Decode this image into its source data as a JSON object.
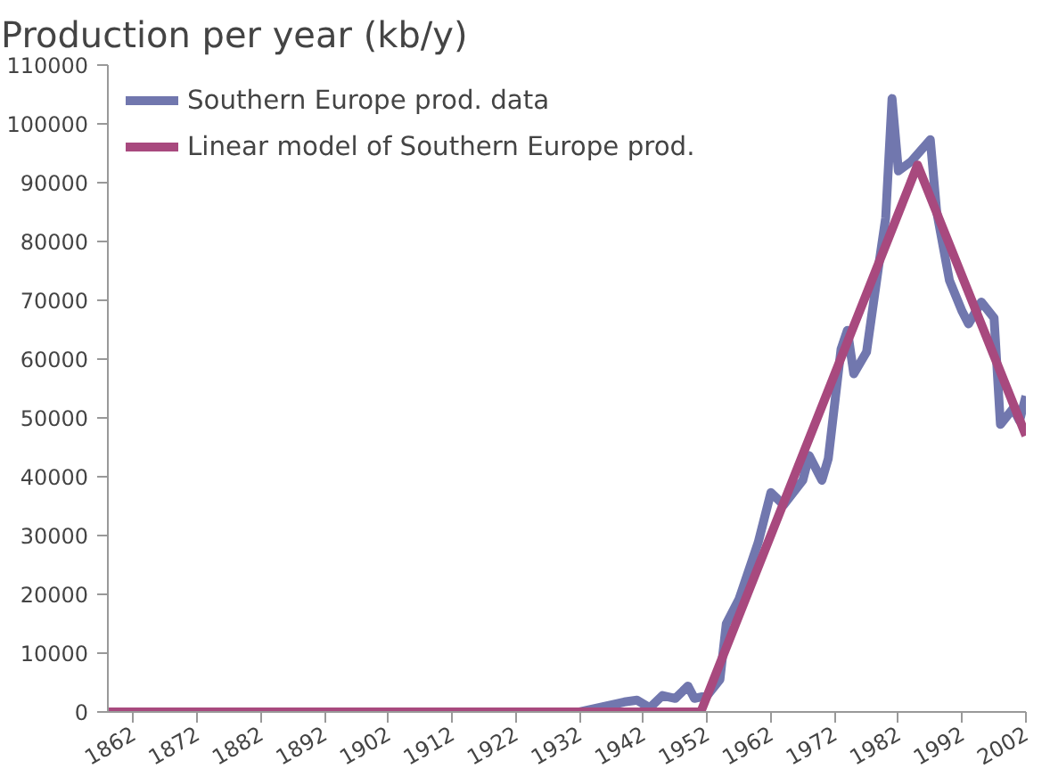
{
  "chart_data": {
    "type": "line",
    "title": "Production per year (kb/y)",
    "xlim": [
      1858,
      2002
    ],
    "xticks": [
      1862,
      1872,
      1882,
      1892,
      1902,
      1912,
      1922,
      1932,
      1942,
      1952,
      1962,
      1972,
      1982,
      1992,
      2002
    ],
    "ylim": [
      0,
      110000
    ],
    "yticks": [
      0,
      10000,
      20000,
      30000,
      40000,
      50000,
      60000,
      70000,
      80000,
      90000,
      100000,
      110000
    ],
    "grid": false,
    "legend": "top left",
    "line_style": "solid",
    "series": [
      {
        "name": "Southern Europe prod. data",
        "color": "#7177ae",
        "x": [
          1858,
          1900,
          1932,
          1939,
          1941,
          1943,
          1945,
          1947,
          1949,
          1950,
          1952,
          1954,
          1955,
          1957,
          1959,
          1960,
          1962,
          1964,
          1967,
          1968,
          1970,
          1971,
          1973,
          1974,
          1975,
          1977,
          1979,
          1980,
          1981,
          1982,
          1984,
          1987,
          1988,
          1990,
          1992,
          1993,
          1995,
          1997,
          1998,
          2000,
          2001,
          2002
        ],
        "values": [
          0,
          0,
          0,
          1700,
          2000,
          700,
          2800,
          2300,
          4400,
          2300,
          2800,
          5500,
          15000,
          19200,
          25600,
          28800,
          37300,
          35200,
          39400,
          43600,
          39400,
          43100,
          61700,
          64900,
          57500,
          61200,
          76600,
          84000,
          104300,
          92000,
          93600,
          97300,
          85100,
          73400,
          68100,
          66000,
          69700,
          67000,
          48900,
          51600,
          49500,
          53700
        ]
      },
      {
        "name": "Linear model of Southern Europe prod.",
        "color": "#a8497e",
        "x": [
          1858,
          1951,
          1985,
          2002
        ],
        "values": [
          0,
          0,
          93000,
          47000
        ]
      }
    ]
  }
}
